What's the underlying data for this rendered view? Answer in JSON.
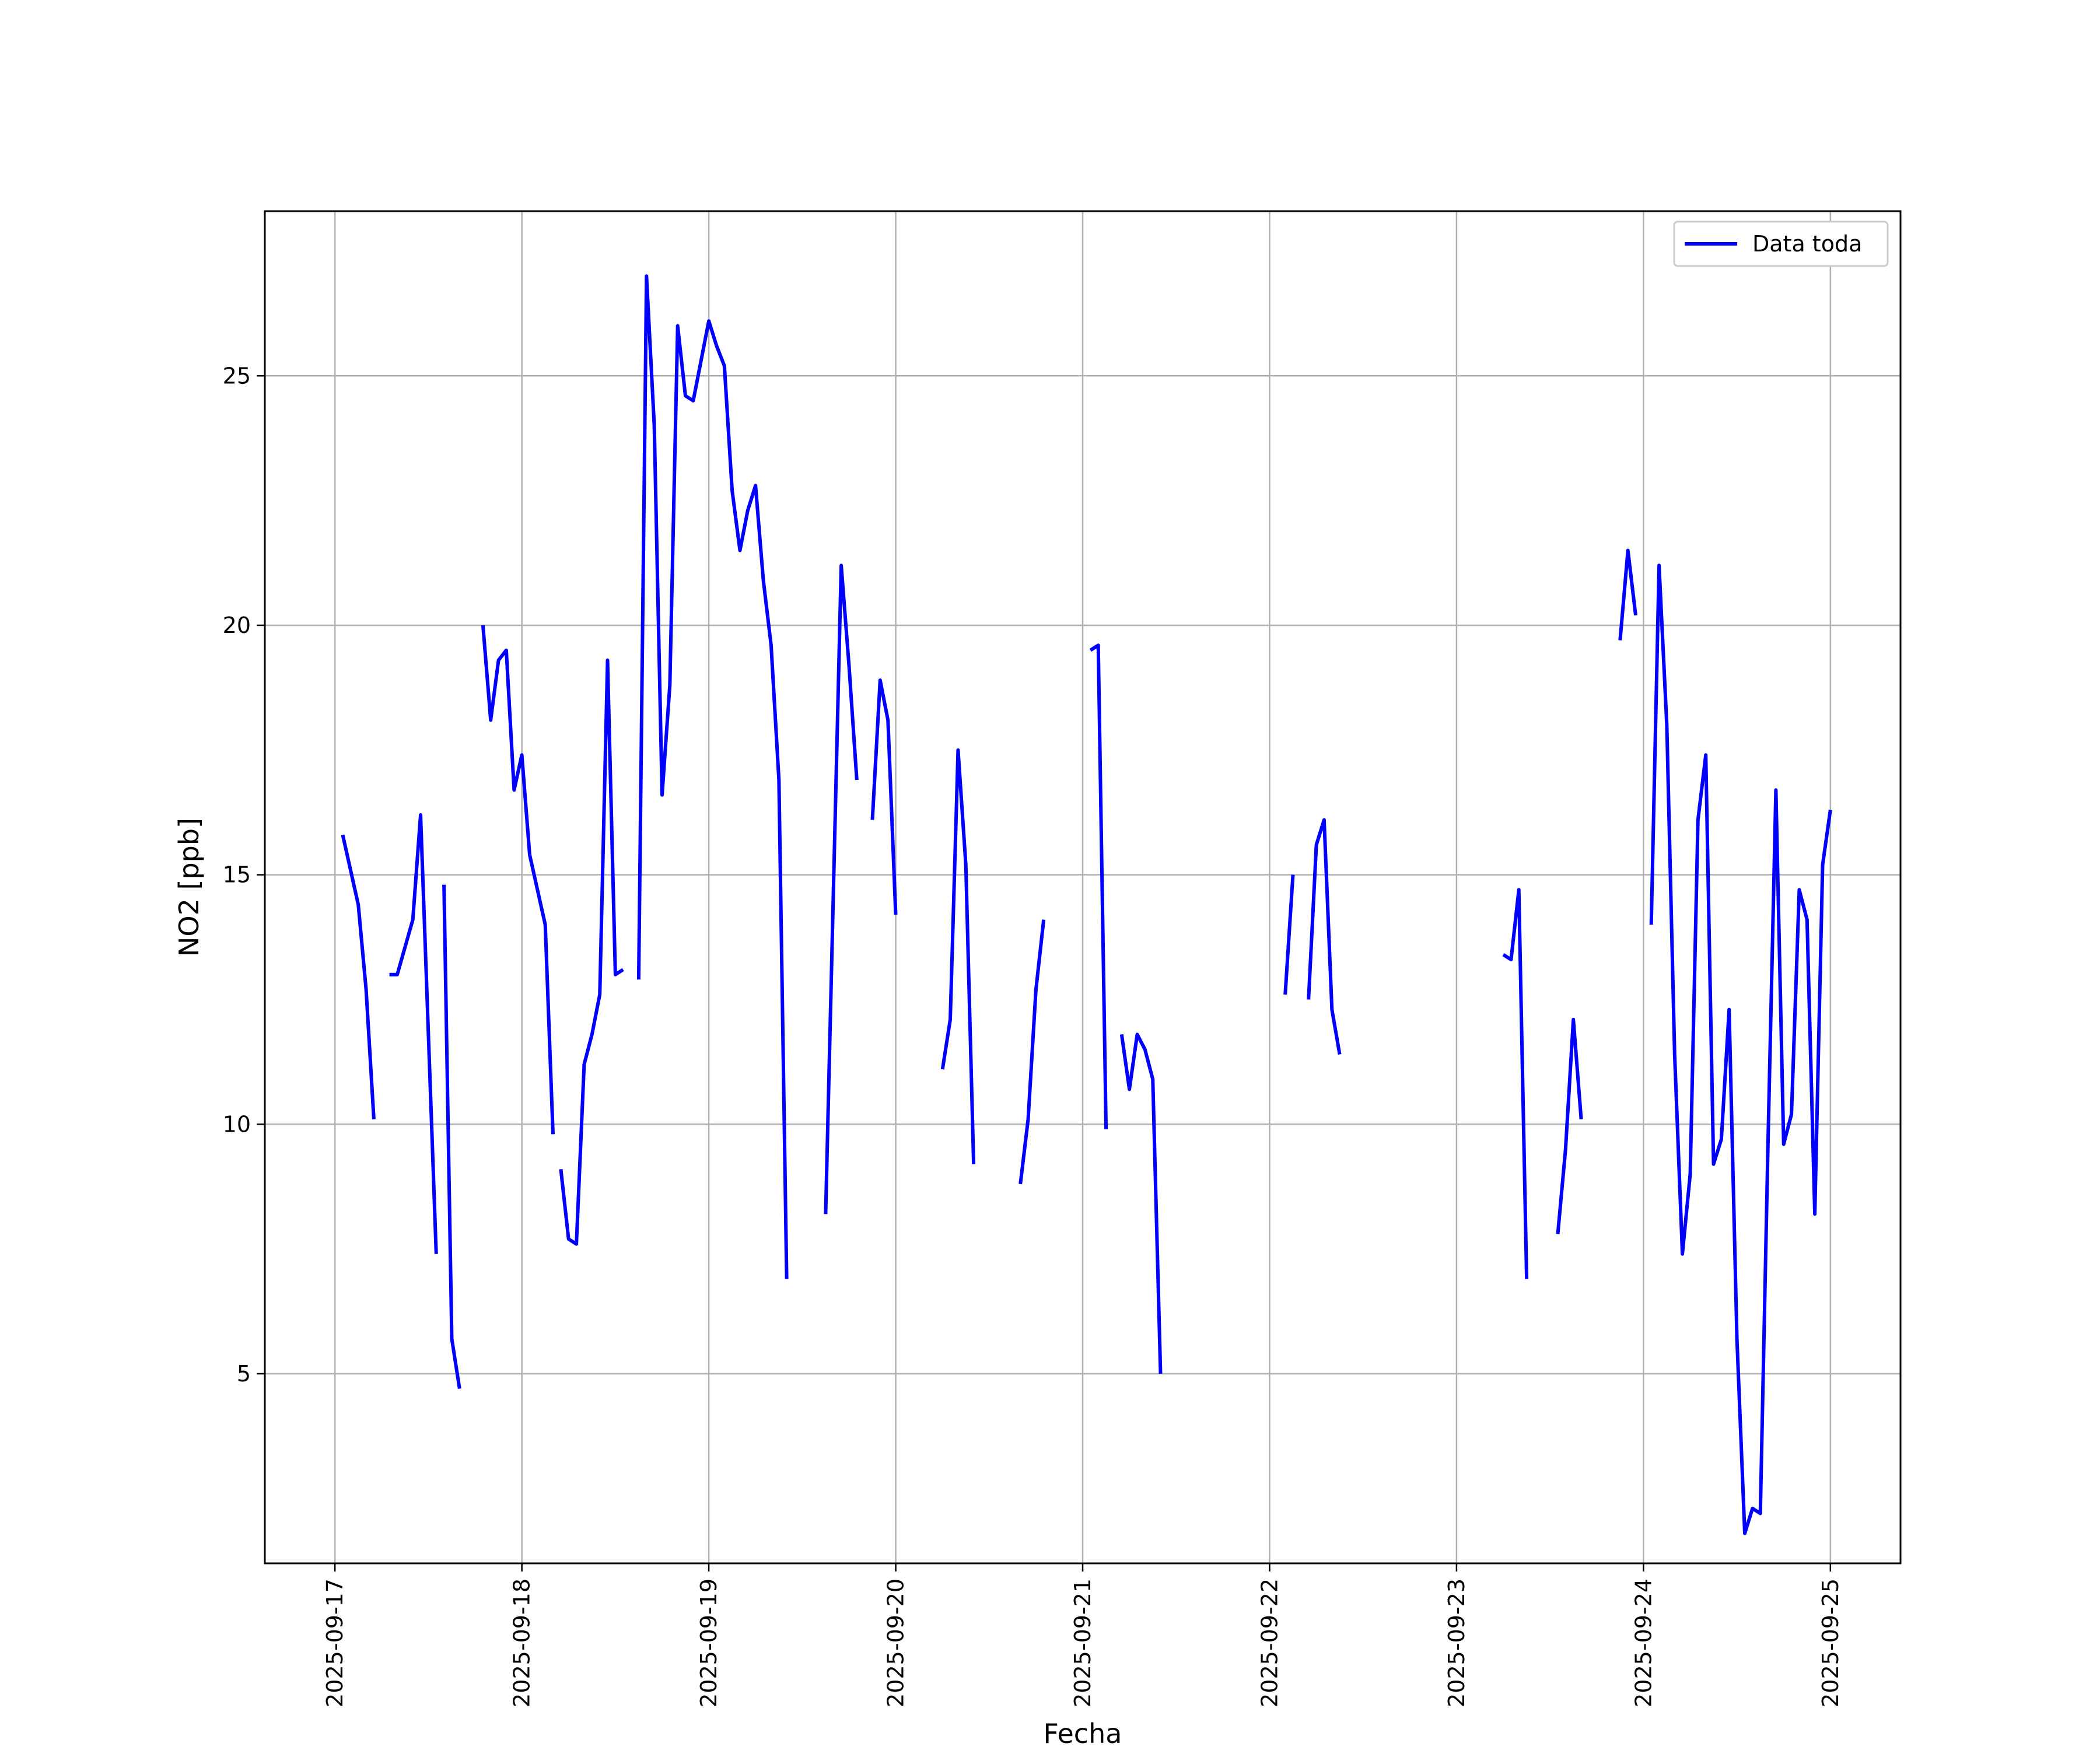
{
  "colors": {
    "line": "#0000ff",
    "grid": "#b0b0b0",
    "axes": "#000000",
    "background": "#ffffff"
  },
  "chart_data": {
    "type": "line",
    "title": "",
    "xlabel": "Fecha",
    "ylabel": "NO2 [ppb]",
    "xlim": [
      "2025-09-16 15:00",
      "2025-09-25 09:00"
    ],
    "ylim": [
      1.2,
      28.3
    ],
    "grid": true,
    "legend_position": "top-right",
    "xticks": [
      {
        "date": "2025-09-17",
        "label": "2025-09-17"
      },
      {
        "date": "2025-09-18",
        "label": "2025-09-18"
      },
      {
        "date": "2025-09-19",
        "label": "2025-09-19"
      },
      {
        "date": "2025-09-20",
        "label": "2025-09-20"
      },
      {
        "date": "2025-09-21",
        "label": "2025-09-21"
      },
      {
        "date": "2025-09-22",
        "label": "2025-09-22"
      },
      {
        "date": "2025-09-23",
        "label": "2025-09-23"
      },
      {
        "date": "2025-09-24",
        "label": "2025-09-24"
      },
      {
        "date": "2025-09-25",
        "label": "2025-09-25"
      }
    ],
    "yticks": [
      {
        "value": 5,
        "label": "5"
      },
      {
        "value": 10,
        "label": "10"
      },
      {
        "value": 15,
        "label": "15"
      },
      {
        "value": 20,
        "label": "20"
      },
      {
        "value": 25,
        "label": "25"
      }
    ],
    "series": [
      {
        "name": "Data toda",
        "color": "#0000ff",
        "segments": [
          [
            [
              "2025-09-17 01:00",
              15.8
            ],
            [
              "2025-09-17 03:00",
              14.4
            ],
            [
              "2025-09-17 04:00",
              12.7
            ],
            [
              "2025-09-17 05:00",
              10.1
            ]
          ],
          [
            [
              "2025-09-17 07:00",
              13.0
            ],
            [
              "2025-09-17 08:00",
              13.0
            ],
            [
              "2025-09-17 10:00",
              14.1
            ],
            [
              "2025-09-17 11:00",
              16.2
            ],
            [
              "2025-09-17 13:00",
              7.4
            ]
          ],
          [
            [
              "2025-09-17 14:00",
              14.8
            ],
            [
              "2025-09-17 15:00",
              5.7
            ],
            [
              "2025-09-17 16:00",
              4.7
            ]
          ],
          [
            [
              "2025-09-17 19:00",
              20.0
            ],
            [
              "2025-09-17 20:00",
              18.1
            ],
            [
              "2025-09-17 21:00",
              19.3
            ],
            [
              "2025-09-17 22:00",
              19.5
            ],
            [
              "2025-09-17 23:00",
              16.7
            ],
            [
              "2025-09-18 00:00",
              17.4
            ],
            [
              "2025-09-18 01:00",
              15.4
            ],
            [
              "2025-09-18 03:00",
              14.0
            ],
            [
              "2025-09-18 04:00",
              9.8
            ]
          ],
          [
            [
              "2025-09-18 05:00",
              9.1
            ],
            [
              "2025-09-18 06:00",
              7.7
            ],
            [
              "2025-09-18 07:00",
              7.6
            ],
            [
              "2025-09-18 08:00",
              11.2
            ],
            [
              "2025-09-18 09:00",
              11.8
            ],
            [
              "2025-09-18 10:00",
              12.6
            ],
            [
              "2025-09-18 11:00",
              19.3
            ],
            [
              "2025-09-18 12:00",
              13.0
            ],
            [
              "2025-09-18 13:00",
              13.1
            ]
          ],
          [
            [
              "2025-09-18 15:00",
              12.9
            ],
            [
              "2025-09-18 16:00",
              27.0
            ],
            [
              "2025-09-18 17:00",
              24.0
            ],
            [
              "2025-09-18 18:00",
              16.6
            ],
            [
              "2025-09-18 19:00",
              18.8
            ],
            [
              "2025-09-18 20:00",
              26.0
            ],
            [
              "2025-09-18 21:00",
              24.6
            ],
            [
              "2025-09-18 22:00",
              24.5
            ],
            [
              "2025-09-19 00:00",
              26.1
            ],
            [
              "2025-09-19 01:00",
              25.6
            ],
            [
              "2025-09-19 02:00",
              25.2
            ],
            [
              "2025-09-19 03:00",
              22.7
            ],
            [
              "2025-09-19 04:00",
              21.5
            ],
            [
              "2025-09-19 05:00",
              22.3
            ],
            [
              "2025-09-19 06:00",
              22.8
            ],
            [
              "2025-09-19 07:00",
              20.9
            ],
            [
              "2025-09-19 08:00",
              19.6
            ],
            [
              "2025-09-19 09:00",
              16.9
            ],
            [
              "2025-09-19 10:00",
              6.9
            ]
          ],
          [
            [
              "2025-09-19 15:00",
              8.2
            ],
            [
              "2025-09-19 17:00",
              21.2
            ],
            [
              "2025-09-19 18:00",
              19.2
            ],
            [
              "2025-09-19 19:00",
              16.9
            ]
          ],
          [
            [
              "2025-09-19 21:00",
              16.1
            ],
            [
              "2025-09-19 22:00",
              18.9
            ],
            [
              "2025-09-19 23:00",
              18.1
            ],
            [
              "2025-09-20 00:00",
              14.2
            ]
          ],
          [
            [
              "2025-09-20 06:00",
              11.1
            ],
            [
              "2025-09-20 07:00",
              12.1
            ],
            [
              "2025-09-20 08:00",
              17.5
            ],
            [
              "2025-09-20 09:00",
              15.2
            ],
            [
              "2025-09-20 10:00",
              9.2
            ]
          ],
          [
            [
              "2025-09-20 16:00",
              8.8
            ],
            [
              "2025-09-20 17:00",
              10.1
            ],
            [
              "2025-09-20 18:00",
              12.7
            ],
            [
              "2025-09-20 19:00",
              14.1
            ]
          ],
          [
            [
              "2025-09-21 01:00",
              19.5
            ],
            [
              "2025-09-21 02:00",
              19.6
            ],
            [
              "2025-09-21 03:00",
              9.9
            ]
          ],
          [
            [
              "2025-09-21 05:00",
              11.8
            ],
            [
              "2025-09-21 06:00",
              10.7
            ],
            [
              "2025-09-21 07:00",
              11.8
            ],
            [
              "2025-09-21 08:00",
              11.5
            ],
            [
              "2025-09-21 09:00",
              10.9
            ],
            [
              "2025-09-21 10:00",
              5.0
            ]
          ],
          [
            [
              "2025-09-22 02:00",
              12.6
            ],
            [
              "2025-09-22 03:00",
              15.0
            ]
          ],
          [
            [
              "2025-09-22 05:00",
              12.5
            ],
            [
              "2025-09-22 06:00",
              15.6
            ],
            [
              "2025-09-22 07:00",
              16.1
            ],
            [
              "2025-09-22 08:00",
              12.3
            ],
            [
              "2025-09-22 09:00",
              11.4
            ]
          ],
          [
            [
              "2025-09-23 06:00",
              13.4
            ],
            [
              "2025-09-23 07:00",
              13.3
            ],
            [
              "2025-09-23 08:00",
              14.7
            ],
            [
              "2025-09-23 09:00",
              6.9
            ]
          ],
          [
            [
              "2025-09-23 13:00",
              7.8
            ],
            [
              "2025-09-23 14:00",
              9.5
            ],
            [
              "2025-09-23 15:00",
              12.1
            ],
            [
              "2025-09-23 16:00",
              10.1
            ]
          ],
          [
            [
              "2025-09-23 21:00",
              19.7
            ],
            [
              "2025-09-23 22:00",
              21.5
            ],
            [
              "2025-09-23 23:00",
              20.2
            ]
          ],
          [
            [
              "2025-09-24 01:00",
              14.0
            ],
            [
              "2025-09-24 02:00",
              21.2
            ],
            [
              "2025-09-24 03:00",
              18.0
            ],
            [
              "2025-09-24 04:00",
              11.4
            ],
            [
              "2025-09-24 05:00",
              7.4
            ],
            [
              "2025-09-24 06:00",
              9.0
            ],
            [
              "2025-09-24 07:00",
              16.1
            ],
            [
              "2025-09-24 08:00",
              17.4
            ],
            [
              "2025-09-24 09:00",
              9.2
            ],
            [
              "2025-09-24 10:00",
              9.7
            ],
            [
              "2025-09-24 11:00",
              12.3
            ],
            [
              "2025-09-24 12:00",
              5.7
            ],
            [
              "2025-09-24 13:00",
              1.8
            ],
            [
              "2025-09-24 14:00",
              2.3
            ],
            [
              "2025-09-24 15:00",
              2.2
            ],
            [
              "2025-09-24 16:00",
              9.7
            ],
            [
              "2025-09-24 17:00",
              16.7
            ],
            [
              "2025-09-24 18:00",
              9.6
            ],
            [
              "2025-09-24 19:00",
              10.2
            ],
            [
              "2025-09-24 20:00",
              14.7
            ],
            [
              "2025-09-24 21:00",
              14.1
            ],
            [
              "2025-09-24 22:00",
              8.2
            ],
            [
              "2025-09-24 23:00",
              15.2
            ],
            [
              "2025-09-25 00:00",
              16.3
            ]
          ]
        ]
      }
    ]
  }
}
